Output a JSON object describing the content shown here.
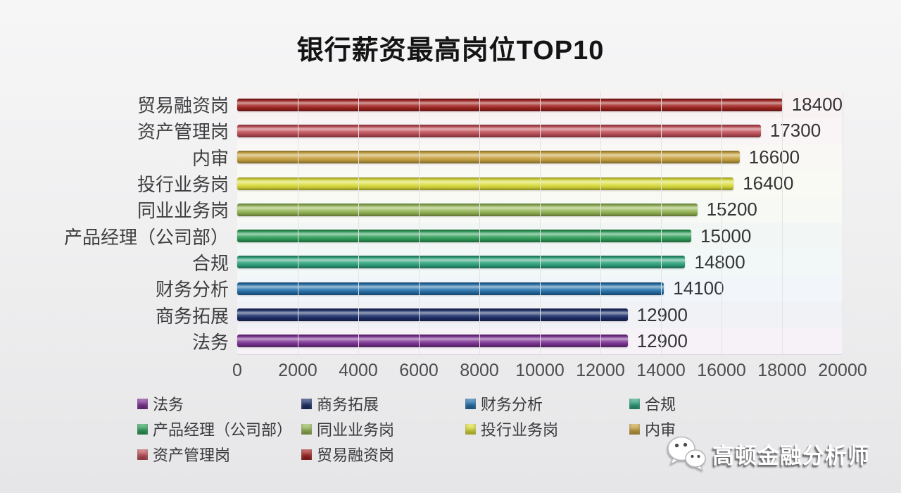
{
  "title": "银行薪资最高岗位TOP10",
  "chart_data": {
    "type": "bar",
    "orientation": "horizontal",
    "title": "银行薪资最高岗位TOP10",
    "categories": [
      "贸易融资岗",
      "资产管理岗",
      "内审",
      "投行业务岗",
      "同业业务岗",
      "产品经理（公司部）",
      "合规",
      "财务分析",
      "商务拓展",
      "法务"
    ],
    "values": [
      18400,
      17300,
      16600,
      16400,
      15200,
      15000,
      14800,
      14100,
      12900,
      12900
    ],
    "colors": [
      "#a12320",
      "#c04e58",
      "#c7a23f",
      "#dbdd3a",
      "#94b654",
      "#2f9f5a",
      "#2ea37d",
      "#2470ab",
      "#1b2e69",
      "#7c3193"
    ],
    "xlim": [
      0,
      20000
    ],
    "x_ticks": [
      0,
      2000,
      4000,
      6000,
      8000,
      10000,
      12000,
      14000,
      16000,
      18000,
      20000
    ],
    "grid": true,
    "legend_position": "bottom",
    "legend": [
      {
        "label": "法务",
        "color": "#7c3193"
      },
      {
        "label": "商务拓展",
        "color": "#1b2e69"
      },
      {
        "label": "财务分析",
        "color": "#2470ab"
      },
      {
        "label": "合规",
        "color": "#2ea37d"
      },
      {
        "label": "产品经理（公司部）",
        "color": "#2f9f5a"
      },
      {
        "label": "同业业务岗",
        "color": "#94b654"
      },
      {
        "label": "投行业务岗",
        "color": "#dbdd3a"
      },
      {
        "label": "内审",
        "color": "#c7a23f"
      },
      {
        "label": "资产管理岗",
        "color": "#c04e58"
      },
      {
        "label": "贸易融资岗",
        "color": "#a12320"
      }
    ]
  },
  "watermark": {
    "text": "高顿金融分析师",
    "icon": "wechat-icon"
  }
}
